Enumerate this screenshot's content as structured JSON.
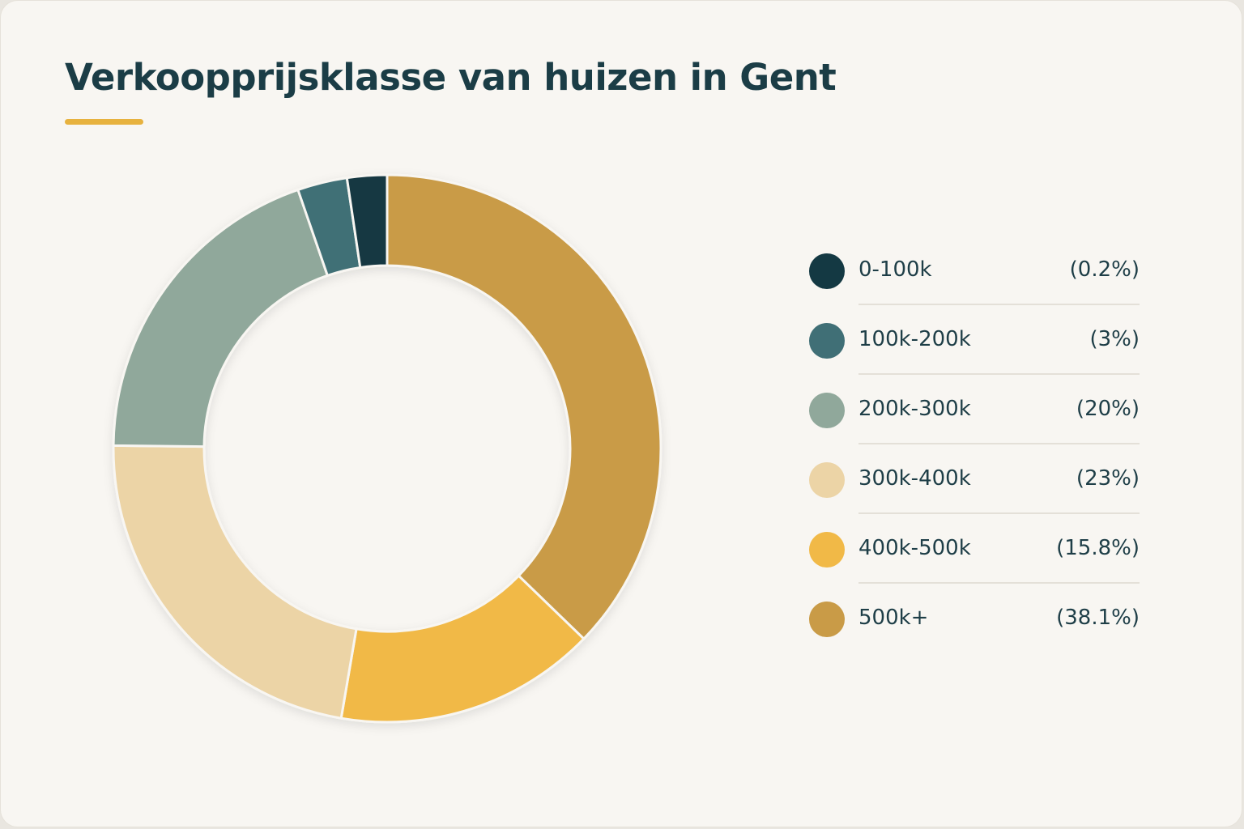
{
  "chart_data": {
    "type": "pie",
    "title": "Verkoopprijsklasse van huizen in Gent",
    "categories": [
      "0-100k",
      "100k-200k",
      "200k-300k",
      "300k-400k",
      "400k-500k",
      "500k+"
    ],
    "values": [
      0.2,
      3,
      20,
      23,
      15.8,
      38.1
    ],
    "value_labels": [
      "(0.2%)",
      "(3%)",
      "(20%)",
      "(23%)",
      "(15.8%)",
      "(38.1%)"
    ],
    "colors": [
      "#143943",
      "#406f76",
      "#90a89b",
      "#ecd4a6",
      "#f1b947",
      "#c99b47"
    ],
    "legend_position": "right",
    "accent_color": "#e7b23f"
  }
}
